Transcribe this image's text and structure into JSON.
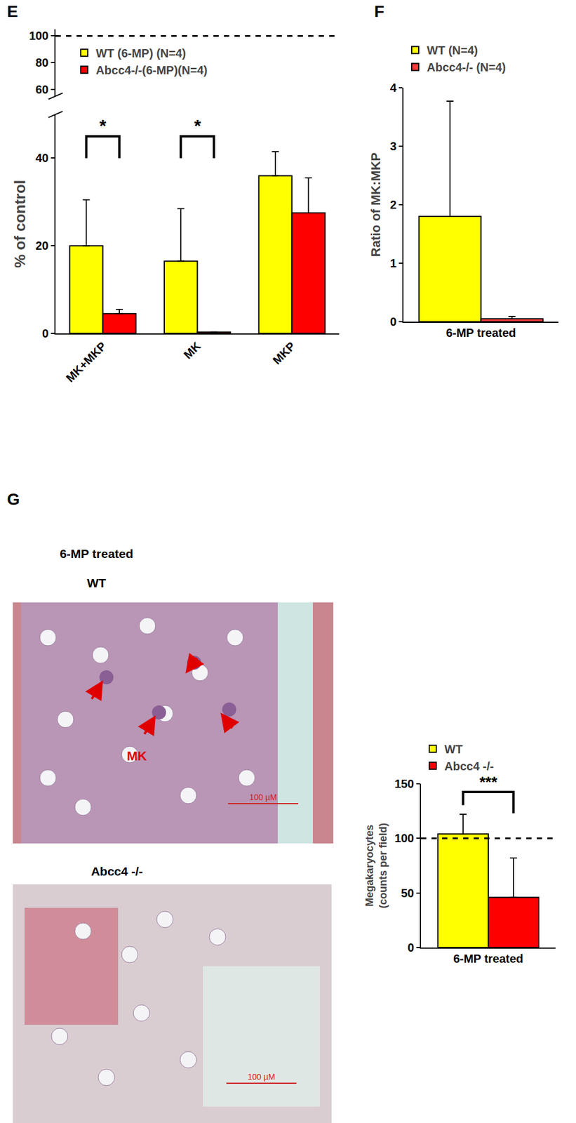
{
  "chart_data": [
    {
      "panel": "E",
      "type": "bar",
      "y_label": "% of control",
      "categories": [
        "MK+MKP",
        "MK",
        "MKP"
      ],
      "series": [
        {
          "name": "WT (6-MP) (N=4)",
          "color": "#ffff00",
          "values": [
            20,
            16.5,
            36
          ],
          "errors": [
            10.5,
            12,
            5.5
          ]
        },
        {
          "name": "Abcc4-/-(6-MP)(N=4)",
          "color": "#ff0000",
          "values": [
            4.5,
            0.3,
            27.5
          ],
          "errors": [
            1,
            0,
            8
          ]
        }
      ],
      "ylim": [
        0,
        50
      ],
      "yticks": [
        0,
        20,
        40
      ],
      "upper_ylim": [
        55,
        105
      ],
      "upper_yticks": [
        60,
        80,
        100
      ],
      "reference_line": 100,
      "significance": [
        {
          "category": "MK+MKP",
          "label": "*"
        },
        {
          "category": "MK",
          "label": "*"
        }
      ],
      "legend": "top-left"
    },
    {
      "panel": "F",
      "type": "bar",
      "y_label": "Ratio of MK:MKP",
      "categories": [
        "6-MP treated"
      ],
      "series": [
        {
          "name": "WT (N=4)",
          "color": "#ffff00",
          "values": [
            1.8
          ],
          "errors": [
            1.97
          ]
        },
        {
          "name": "Abcc4-/- (N=4)",
          "color": "#ff3b3b",
          "values": [
            0.05
          ],
          "errors": [
            0.04
          ]
        }
      ],
      "ylim": [
        0,
        4
      ],
      "yticks": [
        0,
        1,
        2,
        3,
        4
      ],
      "legend": "top"
    },
    {
      "type": "bar",
      "y_label": [
        "Megakaryocytes",
        "(counts per field)"
      ],
      "categories": [
        "6-MP treated"
      ],
      "series": [
        {
          "name": "WT",
          "color": "#ffff00",
          "values": [
            104
          ],
          "errors": [
            18
          ]
        },
        {
          "name": "Abcc4 -/-",
          "color": "#ff0000",
          "values": [
            46
          ],
          "errors": [
            36
          ]
        }
      ],
      "ylim": [
        0,
        150
      ],
      "yticks": [
        0,
        50,
        100,
        150
      ],
      "reference_line": 100,
      "significance_between_series": "***",
      "legend": "top"
    }
  ],
  "images": {
    "panel": "G",
    "heading": "6-MP treated",
    "panels": [
      {
        "title": "WT",
        "marker_label": "MK",
        "scale_bar": "100 µM"
      },
      {
        "title": "Abcc4 -/-",
        "scale_bar": "100 µM"
      }
    ]
  }
}
